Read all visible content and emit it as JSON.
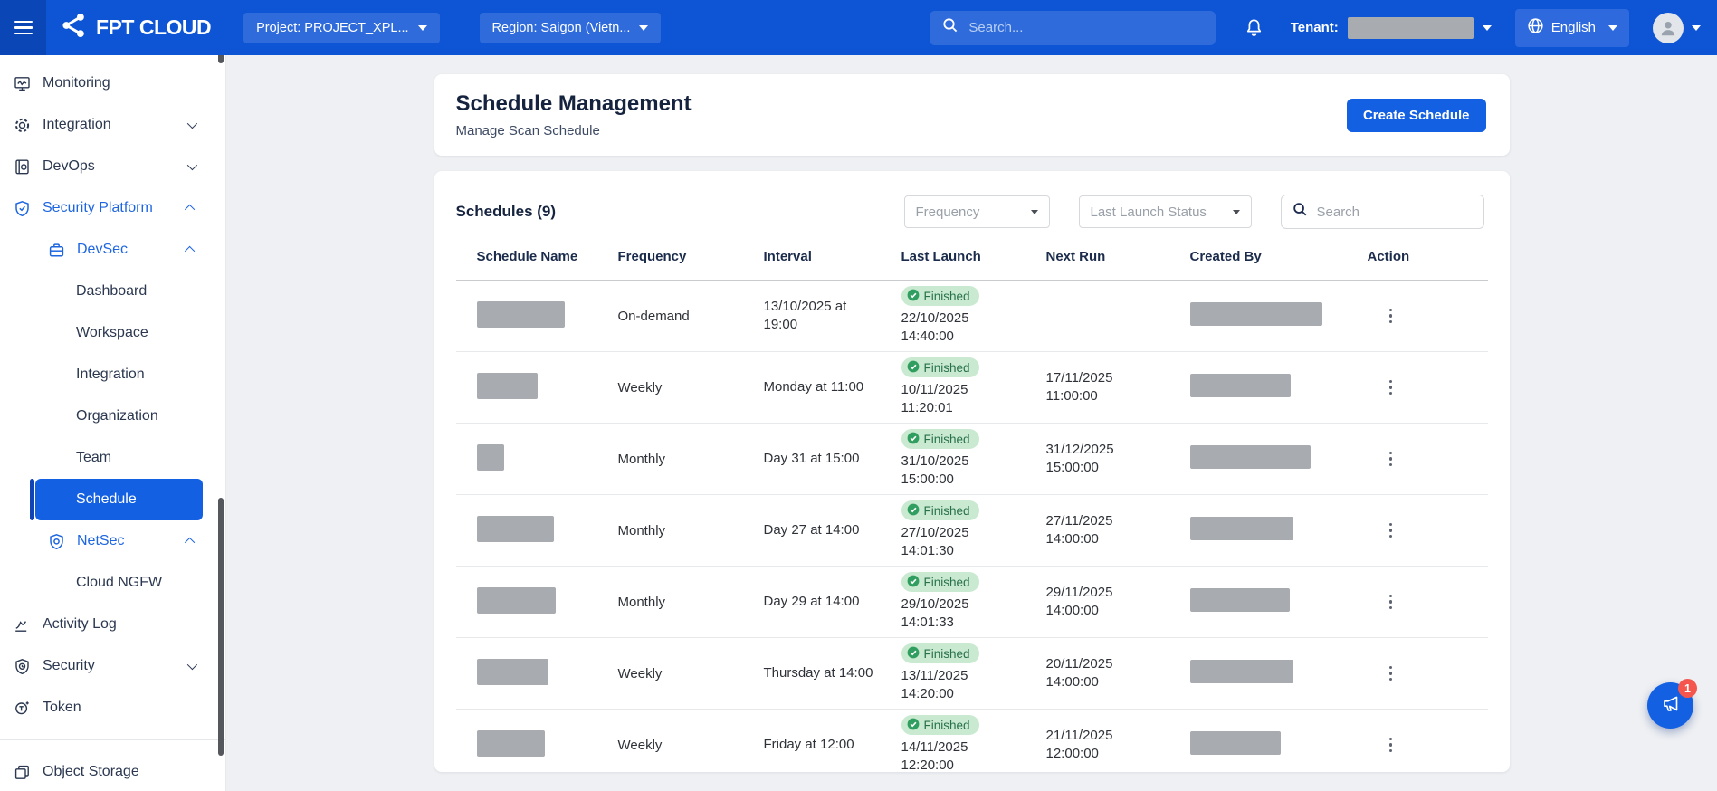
{
  "navbar": {
    "brand": "FPT CLOUD",
    "project": "Project: PROJECT_XPL...",
    "region": "Region: Saigon (Vietn...",
    "search_placeholder": "Search...",
    "tenant_label": "Tenant:",
    "language": "English"
  },
  "sidebar": {
    "items": [
      {
        "label": "Monitoring",
        "icon": "monitoring-icon",
        "level": 0
      },
      {
        "label": "Integration",
        "icon": "integration-icon",
        "level": 0,
        "chevron": "down"
      },
      {
        "label": "DevOps",
        "icon": "devops-icon",
        "level": 0,
        "chevron": "down"
      },
      {
        "label": "Security Platform",
        "icon": "shield-icon",
        "level": 0,
        "chevron": "up",
        "highlighted": true
      },
      {
        "label": "DevSec",
        "icon": "briefcase-icon",
        "level": 1,
        "chevron": "up",
        "highlighted": true
      },
      {
        "label": "Dashboard",
        "level": 2
      },
      {
        "label": "Workspace",
        "level": 2
      },
      {
        "label": "Integration",
        "level": 2
      },
      {
        "label": "Organization",
        "level": 2
      },
      {
        "label": "Team",
        "level": 2
      },
      {
        "label": "Schedule",
        "level": 2,
        "active": true
      },
      {
        "label": "NetSec",
        "icon": "shield-check-icon",
        "level": 1,
        "chevron": "up",
        "highlighted": true
      },
      {
        "label": "Cloud NGFW",
        "level": 2
      },
      {
        "label": "Activity Log",
        "icon": "activity-log-icon",
        "level": 0
      },
      {
        "label": "Security",
        "icon": "security-icon",
        "level": 0,
        "chevron": "down"
      },
      {
        "label": "Token",
        "icon": "token-icon",
        "level": 0
      },
      {
        "divider": true
      },
      {
        "label": "Object Storage",
        "icon": "object-storage-icon",
        "level": 0
      }
    ]
  },
  "page": {
    "title": "Schedule Management",
    "subtitle": "Manage Scan Schedule",
    "create_button": "Create Schedule"
  },
  "filters": {
    "heading": "Schedules (9)",
    "frequency_placeholder": "Frequency",
    "status_placeholder": "Last Launch Status",
    "search_placeholder": "Search"
  },
  "table": {
    "columns": [
      "Schedule Name",
      "Frequency",
      "Interval",
      "Last Launch",
      "Next Run",
      "Created By",
      "Action"
    ],
    "status_colors": {
      "finished_bg": "#c9ead0",
      "finished_text": "#28714a",
      "check_green": "#2f9e5f"
    },
    "rows": [
      {
        "name_redacted": true,
        "name_w": 97,
        "frequency": "On-demand",
        "interval": "13/10/2025 at 19:00",
        "status": "Finished",
        "launch_date": "22/10/2025",
        "launch_time": "14:40:00",
        "next_date": "",
        "next_time": "",
        "created_redacted": true,
        "created_w": 146
      },
      {
        "name_redacted": true,
        "name_w": 67,
        "frequency": "Weekly",
        "interval": "Monday at 11:00",
        "status": "Finished",
        "launch_date": "10/11/2025",
        "launch_time": "11:20:01",
        "next_date": "17/11/2025",
        "next_time": "11:00:00",
        "created_redacted": true,
        "created_w": 111
      },
      {
        "name_redacted": true,
        "name_w": 30,
        "frequency": "Monthly",
        "interval": "Day 31 at 15:00",
        "status": "Finished",
        "launch_date": "31/10/2025",
        "launch_time": "15:00:00",
        "next_date": "31/12/2025",
        "next_time": "15:00:00",
        "created_redacted": true,
        "created_w": 133
      },
      {
        "name_redacted": true,
        "name_w": 85,
        "frequency": "Monthly",
        "interval": "Day 27 at 14:00",
        "status": "Finished",
        "launch_date": "27/10/2025",
        "launch_time": "14:01:30",
        "next_date": "27/11/2025",
        "next_time": "14:00:00",
        "created_redacted": true,
        "created_w": 114
      },
      {
        "name_redacted": true,
        "name_w": 87,
        "frequency": "Monthly",
        "interval": "Day 29 at 14:00",
        "status": "Finished",
        "launch_date": "29/10/2025",
        "launch_time": "14:01:33",
        "next_date": "29/11/2025",
        "next_time": "14:00:00",
        "created_redacted": true,
        "created_w": 110
      },
      {
        "name_redacted": true,
        "name_w": 79,
        "frequency": "Weekly",
        "interval": "Thursday at 14:00",
        "status": "Finished",
        "launch_date": "13/11/2025",
        "launch_time": "14:20:00",
        "next_date": "20/11/2025",
        "next_time": "14:00:00",
        "created_redacted": true,
        "created_w": 114
      },
      {
        "name_redacted": true,
        "name_w": 75,
        "frequency": "Weekly",
        "interval": "Friday at 12:00",
        "status": "Finished",
        "launch_date": "14/11/2025",
        "launch_time": "12:20:00",
        "next_date": "21/11/2025",
        "next_time": "12:00:00",
        "created_redacted": true,
        "created_w": 100
      }
    ]
  },
  "floating": {
    "badge": "1"
  }
}
